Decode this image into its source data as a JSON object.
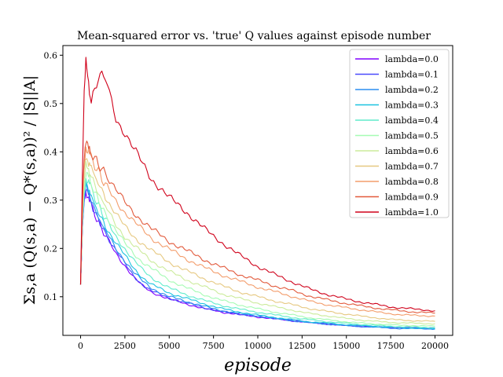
{
  "chart_data": {
    "type": "line",
    "title": "Mean-squared error vs. 'true' Q values against episode number",
    "xlabel": "episode",
    "ylabel": "Σs,a (Q(s,a) − Q*(s,a))² / |S||A|",
    "xlim": [
      -1000,
      21000
    ],
    "ylim": [
      0.02,
      0.62
    ],
    "xticks": [
      0,
      2500,
      5000,
      7500,
      10000,
      12500,
      15000,
      17500,
      20000
    ],
    "yticks": [
      0.1,
      0.2,
      0.3,
      0.4,
      0.5,
      0.6
    ],
    "ytick_labels": [
      "0.1",
      "0.2",
      "0.3",
      "0.4",
      "0.5",
      "0.6"
    ],
    "grid": false,
    "legend_position": "top-right",
    "x": [
      0,
      100,
      200,
      300,
      400,
      500,
      600,
      800,
      1000,
      1200,
      1500,
      2000,
      2500,
      3000,
      3500,
      4000,
      5000,
      6000,
      7000,
      7500,
      8000,
      9000,
      10000,
      11000,
      12000,
      12500,
      13000,
      14000,
      15000,
      16000,
      17000,
      17500,
      18000,
      19000,
      20000
    ],
    "series": [
      {
        "name": "lambda=0.0",
        "color": "#8000ff",
        "values": [
          0.125,
          0.24,
          0.3,
          0.315,
          0.31,
          0.3,
          0.29,
          0.27,
          0.255,
          0.24,
          0.22,
          0.19,
          0.165,
          0.14,
          0.122,
          0.11,
          0.095,
          0.085,
          0.075,
          0.072,
          0.068,
          0.063,
          0.058,
          0.054,
          0.05,
          0.048,
          0.046,
          0.043,
          0.04,
          0.038,
          0.037,
          0.036,
          0.036,
          0.035,
          0.035
        ]
      },
      {
        "name": "lambda=0.1",
        "color": "#4a4afc",
        "values": [
          0.125,
          0.24,
          0.3,
          0.325,
          0.315,
          0.305,
          0.295,
          0.275,
          0.26,
          0.245,
          0.225,
          0.195,
          0.168,
          0.143,
          0.125,
          0.112,
          0.097,
          0.087,
          0.077,
          0.073,
          0.069,
          0.064,
          0.059,
          0.055,
          0.051,
          0.049,
          0.047,
          0.044,
          0.041,
          0.039,
          0.038,
          0.037,
          0.036,
          0.036,
          0.035
        ]
      },
      {
        "name": "lambda=0.2",
        "color": "#2c8ef0",
        "values": [
          0.125,
          0.245,
          0.305,
          0.33,
          0.32,
          0.31,
          0.3,
          0.28,
          0.265,
          0.25,
          0.23,
          0.2,
          0.175,
          0.15,
          0.132,
          0.118,
          0.1,
          0.09,
          0.08,
          0.075,
          0.071,
          0.065,
          0.06,
          0.055,
          0.05,
          0.048,
          0.046,
          0.043,
          0.04,
          0.038,
          0.036,
          0.035,
          0.034,
          0.034,
          0.033
        ]
      },
      {
        "name": "lambda=0.3",
        "color": "#1cc3e0",
        "values": [
          0.125,
          0.245,
          0.31,
          0.335,
          0.33,
          0.32,
          0.31,
          0.29,
          0.275,
          0.26,
          0.24,
          0.21,
          0.185,
          0.16,
          0.14,
          0.125,
          0.108,
          0.096,
          0.085,
          0.08,
          0.075,
          0.068,
          0.062,
          0.057,
          0.052,
          0.05,
          0.048,
          0.045,
          0.042,
          0.04,
          0.038,
          0.037,
          0.036,
          0.035,
          0.034
        ]
      },
      {
        "name": "lambda=0.4",
        "color": "#60eccc",
        "values": [
          0.125,
          0.25,
          0.315,
          0.345,
          0.34,
          0.335,
          0.325,
          0.305,
          0.29,
          0.275,
          0.255,
          0.225,
          0.2,
          0.175,
          0.155,
          0.14,
          0.118,
          0.104,
          0.092,
          0.087,
          0.082,
          0.074,
          0.068,
          0.062,
          0.057,
          0.054,
          0.052,
          0.048,
          0.045,
          0.042,
          0.04,
          0.039,
          0.038,
          0.037,
          0.036
        ]
      },
      {
        "name": "lambda=0.5",
        "color": "#a6fbb4",
        "values": [
          0.125,
          0.255,
          0.325,
          0.355,
          0.35,
          0.345,
          0.335,
          0.315,
          0.3,
          0.285,
          0.265,
          0.235,
          0.21,
          0.19,
          0.172,
          0.158,
          0.135,
          0.118,
          0.104,
          0.098,
          0.092,
          0.083,
          0.075,
          0.068,
          0.062,
          0.059,
          0.056,
          0.052,
          0.048,
          0.045,
          0.043,
          0.042,
          0.041,
          0.04,
          0.039
        ]
      },
      {
        "name": "lambda=0.6",
        "color": "#cceb9c",
        "values": [
          0.125,
          0.26,
          0.34,
          0.37,
          0.365,
          0.36,
          0.35,
          0.33,
          0.315,
          0.3,
          0.28,
          0.25,
          0.225,
          0.205,
          0.19,
          0.175,
          0.152,
          0.135,
          0.12,
          0.113,
          0.106,
          0.096,
          0.087,
          0.079,
          0.072,
          0.068,
          0.065,
          0.06,
          0.055,
          0.051,
          0.048,
          0.047,
          0.046,
          0.045,
          0.044
        ]
      },
      {
        "name": "lambda=0.7",
        "color": "#e6c880",
        "values": [
          0.125,
          0.27,
          0.36,
          0.39,
          0.385,
          0.375,
          0.37,
          0.35,
          0.335,
          0.32,
          0.3,
          0.27,
          0.245,
          0.225,
          0.21,
          0.195,
          0.172,
          0.153,
          0.137,
          0.13,
          0.122,
          0.11,
          0.1,
          0.091,
          0.083,
          0.079,
          0.075,
          0.069,
          0.064,
          0.059,
          0.055,
          0.053,
          0.052,
          0.05,
          0.049
        ]
      },
      {
        "name": "lambda=0.8",
        "color": "#f39d6c",
        "values": [
          0.125,
          0.28,
          0.38,
          0.41,
          0.4,
          0.395,
          0.39,
          0.37,
          0.36,
          0.345,
          0.325,
          0.3,
          0.275,
          0.255,
          0.238,
          0.222,
          0.198,
          0.178,
          0.16,
          0.152,
          0.145,
          0.132,
          0.12,
          0.11,
          0.1,
          0.095,
          0.09,
          0.083,
          0.077,
          0.072,
          0.067,
          0.065,
          0.063,
          0.061,
          0.06
        ]
      },
      {
        "name": "lambda=0.9",
        "color": "#e25a3c",
        "values": [
          0.125,
          0.3,
          0.39,
          0.42,
          0.41,
          0.405,
          0.4,
          0.385,
          0.375,
          0.365,
          0.35,
          0.32,
          0.295,
          0.275,
          0.257,
          0.24,
          0.215,
          0.195,
          0.177,
          0.168,
          0.16,
          0.146,
          0.134,
          0.122,
          0.112,
          0.106,
          0.101,
          0.093,
          0.086,
          0.08,
          0.075,
          0.073,
          0.071,
          0.068,
          0.066
        ]
      },
      {
        "name": "lambda=1.0",
        "color": "#d0021b",
        "values": [
          0.125,
          0.35,
          0.52,
          0.585,
          0.56,
          0.53,
          0.5,
          0.53,
          0.55,
          0.565,
          0.54,
          0.47,
          0.44,
          0.405,
          0.375,
          0.345,
          0.305,
          0.275,
          0.24,
          0.225,
          0.212,
          0.185,
          0.163,
          0.145,
          0.13,
          0.122,
          0.115,
          0.104,
          0.095,
          0.088,
          0.082,
          0.079,
          0.077,
          0.074,
          0.071
        ]
      }
    ]
  }
}
